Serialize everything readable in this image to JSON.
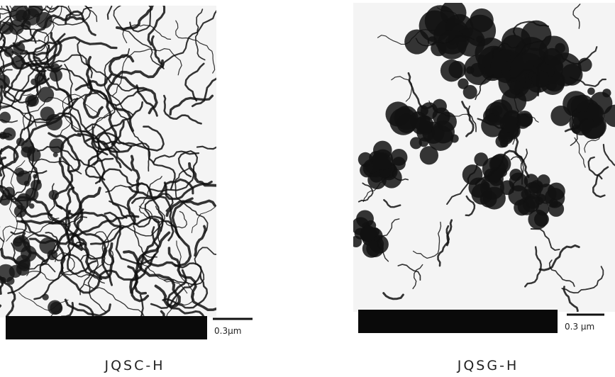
{
  "images": [
    {
      "scale_label": "0.3μm",
      "caption": "JQSC-H"
    },
    {
      "scale_label": "0.3 μm",
      "caption": "JQSG-H"
    }
  ]
}
